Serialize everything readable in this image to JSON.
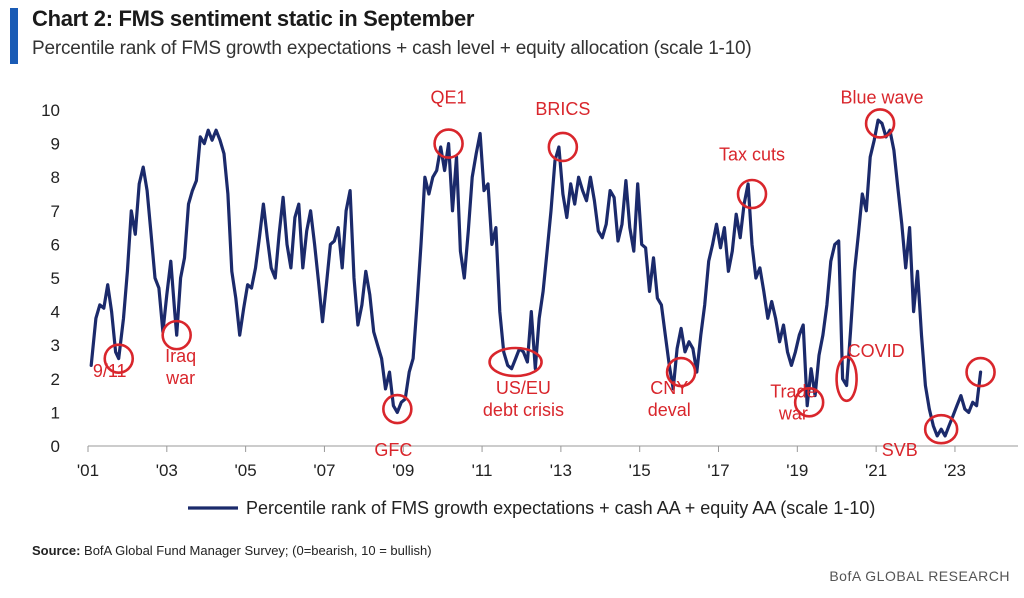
{
  "header": {
    "title": "Chart 2: FMS sentiment static in September",
    "subtitle": "Percentile rank of FMS growth expectations + cash level + equity allocation (scale 1-10)"
  },
  "footer": {
    "source_label": "Source:",
    "source_text": "BofA Global Fund Manager Survey; (0=bearish, 10 = bullish)",
    "brand": "BofA GLOBAL RESEARCH"
  },
  "colors": {
    "line": "#1b2a6b",
    "annotation": "#d9262c",
    "accent": "#1a5bb5"
  },
  "chart_data": {
    "type": "line",
    "title": "Chart 2: FMS sentiment static in September",
    "subtitle": "Percentile rank of FMS growth expectations + cash level + equity allocation (scale 1-10)",
    "ylim": [
      0,
      10
    ],
    "yticks": [
      0,
      1,
      2,
      3,
      4,
      5,
      6,
      7,
      8,
      9,
      10
    ],
    "xlim": [
      2001.0,
      2024.6
    ],
    "xticks": [
      {
        "value": 2001,
        "label": "'01"
      },
      {
        "value": 2003,
        "label": "'03"
      },
      {
        "value": 2005,
        "label": "'05"
      },
      {
        "value": 2007,
        "label": "'07"
      },
      {
        "value": 2009,
        "label": "'09"
      },
      {
        "value": 2011,
        "label": "'11"
      },
      {
        "value": 2013,
        "label": "'13"
      },
      {
        "value": 2015,
        "label": "'15"
      },
      {
        "value": 2017,
        "label": "'17"
      },
      {
        "value": 2019,
        "label": "'19"
      },
      {
        "value": 2021,
        "label": "'21"
      },
      {
        "value": 2023,
        "label": "'23"
      }
    ],
    "legend_position": "bottom",
    "series": [
      {
        "name": "Percentile rank of FMS growth expectations + cash AA + equity AA (scale 1-10)",
        "points": [
          [
            2001.08,
            2.4
          ],
          [
            2001.2,
            3.8
          ],
          [
            2001.3,
            4.2
          ],
          [
            2001.4,
            4.1
          ],
          [
            2001.5,
            4.8
          ],
          [
            2001.6,
            4.0
          ],
          [
            2001.7,
            2.8
          ],
          [
            2001.78,
            2.6
          ],
          [
            2001.9,
            3.8
          ],
          [
            2002.0,
            5.2
          ],
          [
            2002.1,
            7.0
          ],
          [
            2002.2,
            6.3
          ],
          [
            2002.3,
            7.8
          ],
          [
            2002.4,
            8.3
          ],
          [
            2002.5,
            7.6
          ],
          [
            2002.6,
            6.3
          ],
          [
            2002.7,
            5.0
          ],
          [
            2002.8,
            4.7
          ],
          [
            2002.9,
            3.4
          ],
          [
            2003.0,
            4.5
          ],
          [
            2003.1,
            5.5
          ],
          [
            2003.2,
            4.0
          ],
          [
            2003.25,
            3.3
          ],
          [
            2003.35,
            5.0
          ],
          [
            2003.45,
            5.6
          ],
          [
            2003.55,
            7.2
          ],
          [
            2003.65,
            7.6
          ],
          [
            2003.75,
            7.9
          ],
          [
            2003.85,
            9.2
          ],
          [
            2003.95,
            9.0
          ],
          [
            2004.05,
            9.4
          ],
          [
            2004.15,
            9.1
          ],
          [
            2004.25,
            9.4
          ],
          [
            2004.35,
            9.1
          ],
          [
            2004.45,
            8.7
          ],
          [
            2004.55,
            7.5
          ],
          [
            2004.65,
            5.2
          ],
          [
            2004.75,
            4.4
          ],
          [
            2004.85,
            3.3
          ],
          [
            2004.95,
            4.1
          ],
          [
            2005.05,
            4.8
          ],
          [
            2005.15,
            4.7
          ],
          [
            2005.25,
            5.3
          ],
          [
            2005.35,
            6.2
          ],
          [
            2005.45,
            7.2
          ],
          [
            2005.55,
            6.2
          ],
          [
            2005.65,
            5.3
          ],
          [
            2005.75,
            5.0
          ],
          [
            2005.85,
            6.3
          ],
          [
            2005.95,
            7.4
          ],
          [
            2006.05,
            6.0
          ],
          [
            2006.15,
            5.3
          ],
          [
            2006.25,
            6.8
          ],
          [
            2006.35,
            7.2
          ],
          [
            2006.45,
            5.3
          ],
          [
            2006.55,
            6.4
          ],
          [
            2006.65,
            7.0
          ],
          [
            2006.75,
            6.0
          ],
          [
            2006.85,
            4.9
          ],
          [
            2006.95,
            3.7
          ],
          [
            2007.05,
            4.8
          ],
          [
            2007.15,
            6.0
          ],
          [
            2007.25,
            6.1
          ],
          [
            2007.35,
            6.5
          ],
          [
            2007.45,
            5.3
          ],
          [
            2007.55,
            7.0
          ],
          [
            2007.65,
            7.6
          ],
          [
            2007.75,
            5.0
          ],
          [
            2007.85,
            3.6
          ],
          [
            2007.95,
            4.2
          ],
          [
            2008.05,
            5.2
          ],
          [
            2008.15,
            4.5
          ],
          [
            2008.25,
            3.4
          ],
          [
            2008.35,
            3.0
          ],
          [
            2008.45,
            2.6
          ],
          [
            2008.55,
            1.7
          ],
          [
            2008.65,
            2.2
          ],
          [
            2008.75,
            1.2
          ],
          [
            2008.85,
            1.0
          ],
          [
            2008.95,
            1.3
          ],
          [
            2009.05,
            1.4
          ],
          [
            2009.15,
            2.2
          ],
          [
            2009.25,
            2.6
          ],
          [
            2009.35,
            4.2
          ],
          [
            2009.45,
            6.0
          ],
          [
            2009.55,
            8.0
          ],
          [
            2009.65,
            7.5
          ],
          [
            2009.75,
            8.0
          ],
          [
            2009.85,
            8.2
          ],
          [
            2009.95,
            8.9
          ],
          [
            2010.05,
            8.2
          ],
          [
            2010.15,
            9.0
          ],
          [
            2010.25,
            7.0
          ],
          [
            2010.35,
            8.6
          ],
          [
            2010.45,
            5.8
          ],
          [
            2010.55,
            5.0
          ],
          [
            2010.65,
            6.4
          ],
          [
            2010.75,
            8.0
          ],
          [
            2010.85,
            8.7
          ],
          [
            2010.95,
            9.3
          ],
          [
            2011.05,
            7.6
          ],
          [
            2011.15,
            7.8
          ],
          [
            2011.25,
            6.0
          ],
          [
            2011.35,
            6.5
          ],
          [
            2011.45,
            4.0
          ],
          [
            2011.55,
            2.8
          ],
          [
            2011.65,
            2.4
          ],
          [
            2011.75,
            2.3
          ],
          [
            2011.85,
            2.6
          ],
          [
            2011.95,
            2.9
          ],
          [
            2012.05,
            2.8
          ],
          [
            2012.15,
            2.5
          ],
          [
            2012.25,
            4.0
          ],
          [
            2012.35,
            2.3
          ],
          [
            2012.45,
            3.8
          ],
          [
            2012.55,
            4.6
          ],
          [
            2012.65,
            5.8
          ],
          [
            2012.75,
            7.0
          ],
          [
            2012.85,
            8.5
          ],
          [
            2012.95,
            8.9
          ],
          [
            2013.05,
            7.5
          ],
          [
            2013.15,
            6.8
          ],
          [
            2013.25,
            7.8
          ],
          [
            2013.35,
            7.2
          ],
          [
            2013.45,
            8.0
          ],
          [
            2013.55,
            7.6
          ],
          [
            2013.65,
            7.3
          ],
          [
            2013.75,
            8.0
          ],
          [
            2013.85,
            7.3
          ],
          [
            2013.95,
            6.4
          ],
          [
            2014.05,
            6.2
          ],
          [
            2014.15,
            6.6
          ],
          [
            2014.25,
            7.6
          ],
          [
            2014.35,
            7.4
          ],
          [
            2014.45,
            6.1
          ],
          [
            2014.55,
            6.6
          ],
          [
            2014.65,
            7.9
          ],
          [
            2014.75,
            6.5
          ],
          [
            2014.85,
            5.8
          ],
          [
            2014.95,
            7.8
          ],
          [
            2015.05,
            6.0
          ],
          [
            2015.15,
            5.9
          ],
          [
            2015.25,
            4.6
          ],
          [
            2015.35,
            5.6
          ],
          [
            2015.45,
            4.4
          ],
          [
            2015.55,
            4.2
          ],
          [
            2015.65,
            3.3
          ],
          [
            2015.75,
            2.4
          ],
          [
            2015.85,
            1.7
          ],
          [
            2015.95,
            2.9
          ],
          [
            2016.05,
            3.5
          ],
          [
            2016.15,
            2.8
          ],
          [
            2016.25,
            3.1
          ],
          [
            2016.35,
            2.9
          ],
          [
            2016.45,
            2.2
          ],
          [
            2016.55,
            3.3
          ],
          [
            2016.65,
            4.2
          ],
          [
            2016.75,
            5.5
          ],
          [
            2016.85,
            6.0
          ],
          [
            2016.95,
            6.6
          ],
          [
            2017.05,
            5.9
          ],
          [
            2017.15,
            6.5
          ],
          [
            2017.25,
            5.2
          ],
          [
            2017.35,
            5.8
          ],
          [
            2017.45,
            6.9
          ],
          [
            2017.55,
            6.2
          ],
          [
            2017.65,
            7.2
          ],
          [
            2017.75,
            7.8
          ],
          [
            2017.85,
            6.0
          ],
          [
            2017.95,
            5.0
          ],
          [
            2018.05,
            5.3
          ],
          [
            2018.15,
            4.6
          ],
          [
            2018.25,
            3.8
          ],
          [
            2018.35,
            4.3
          ],
          [
            2018.45,
            3.8
          ],
          [
            2018.55,
            3.1
          ],
          [
            2018.65,
            3.6
          ],
          [
            2018.75,
            2.8
          ],
          [
            2018.85,
            2.4
          ],
          [
            2018.95,
            2.8
          ],
          [
            2019.05,
            3.3
          ],
          [
            2019.15,
            3.6
          ],
          [
            2019.25,
            1.2
          ],
          [
            2019.35,
            2.3
          ],
          [
            2019.45,
            1.5
          ],
          [
            2019.55,
            2.7
          ],
          [
            2019.65,
            3.3
          ],
          [
            2019.75,
            4.2
          ],
          [
            2019.85,
            5.5
          ],
          [
            2019.95,
            6.0
          ],
          [
            2020.05,
            6.1
          ],
          [
            2020.15,
            2.0
          ],
          [
            2020.25,
            1.8
          ],
          [
            2020.35,
            3.4
          ],
          [
            2020.45,
            5.2
          ],
          [
            2020.55,
            6.3
          ],
          [
            2020.65,
            7.5
          ],
          [
            2020.75,
            7.0
          ],
          [
            2020.85,
            8.6
          ],
          [
            2020.95,
            9.1
          ],
          [
            2021.05,
            9.7
          ],
          [
            2021.15,
            9.6
          ],
          [
            2021.25,
            9.2
          ],
          [
            2021.35,
            9.4
          ],
          [
            2021.45,
            8.8
          ],
          [
            2021.55,
            7.7
          ],
          [
            2021.65,
            6.6
          ],
          [
            2021.75,
            5.3
          ],
          [
            2021.85,
            6.5
          ],
          [
            2021.95,
            4.0
          ],
          [
            2022.05,
            5.2
          ],
          [
            2022.15,
            3.3
          ],
          [
            2022.25,
            1.8
          ],
          [
            2022.35,
            1.1
          ],
          [
            2022.45,
            0.6
          ],
          [
            2022.55,
            0.3
          ],
          [
            2022.65,
            0.5
          ],
          [
            2022.75,
            0.3
          ],
          [
            2022.85,
            0.6
          ],
          [
            2022.95,
            0.9
          ],
          [
            2023.05,
            1.2
          ],
          [
            2023.15,
            1.5
          ],
          [
            2023.25,
            1.1
          ],
          [
            2023.35,
            1.0
          ],
          [
            2023.45,
            1.3
          ],
          [
            2023.55,
            1.2
          ],
          [
            2023.65,
            2.2
          ]
        ]
      }
    ],
    "annotations": [
      {
        "label": "9/11",
        "x": 2001.78,
        "y": 2.6,
        "label_x": 2001.55,
        "label_y": 2.05
      },
      {
        "label": "Iraq\nwar",
        "x": 2003.25,
        "y": 3.3,
        "label_x": 2003.35,
        "label_y": 2.5
      },
      {
        "label": "GFC",
        "x": 2008.85,
        "y": 1.1,
        "label_x": 2008.75,
        "label_y": -0.3
      },
      {
        "label": "QE1",
        "x": 2010.15,
        "y": 9.0,
        "label_x": 2010.15,
        "label_y": 10.2
      },
      {
        "label": "US/EU\ndebt crisis",
        "x": 2011.85,
        "y": 2.5,
        "label_x": 2012.05,
        "label_y": 1.55
      },
      {
        "label": "BRICS",
        "x": 2013.05,
        "y": 8.9,
        "label_x": 2013.05,
        "label_y": 9.85
      },
      {
        "label": "CNY\ndeval",
        "x": 2016.05,
        "y": 2.2,
        "label_x": 2015.75,
        "label_y": 1.55
      },
      {
        "label": "Tax cuts",
        "x": 2017.85,
        "y": 7.5,
        "label_x": 2017.85,
        "label_y": 8.5
      },
      {
        "label": "Trade\nwar",
        "x": 2019.3,
        "y": 1.3,
        "label_x": 2018.9,
        "label_y": 1.45
      },
      {
        "label": "COVID",
        "x": 2020.25,
        "y": 2.0,
        "label_x": 2021.0,
        "label_y": 2.65
      },
      {
        "label": "Blue wave",
        "x": 2021.1,
        "y": 9.6,
        "label_x": 2021.15,
        "label_y": 10.2
      },
      {
        "label": "SVB",
        "x": 2022.65,
        "y": 0.5,
        "label_x": 2021.6,
        "label_y": -0.3
      },
      {
        "label": "",
        "x": 2023.65,
        "y": 2.2,
        "label_x": 2023.65,
        "label_y": 2.2
      }
    ]
  }
}
